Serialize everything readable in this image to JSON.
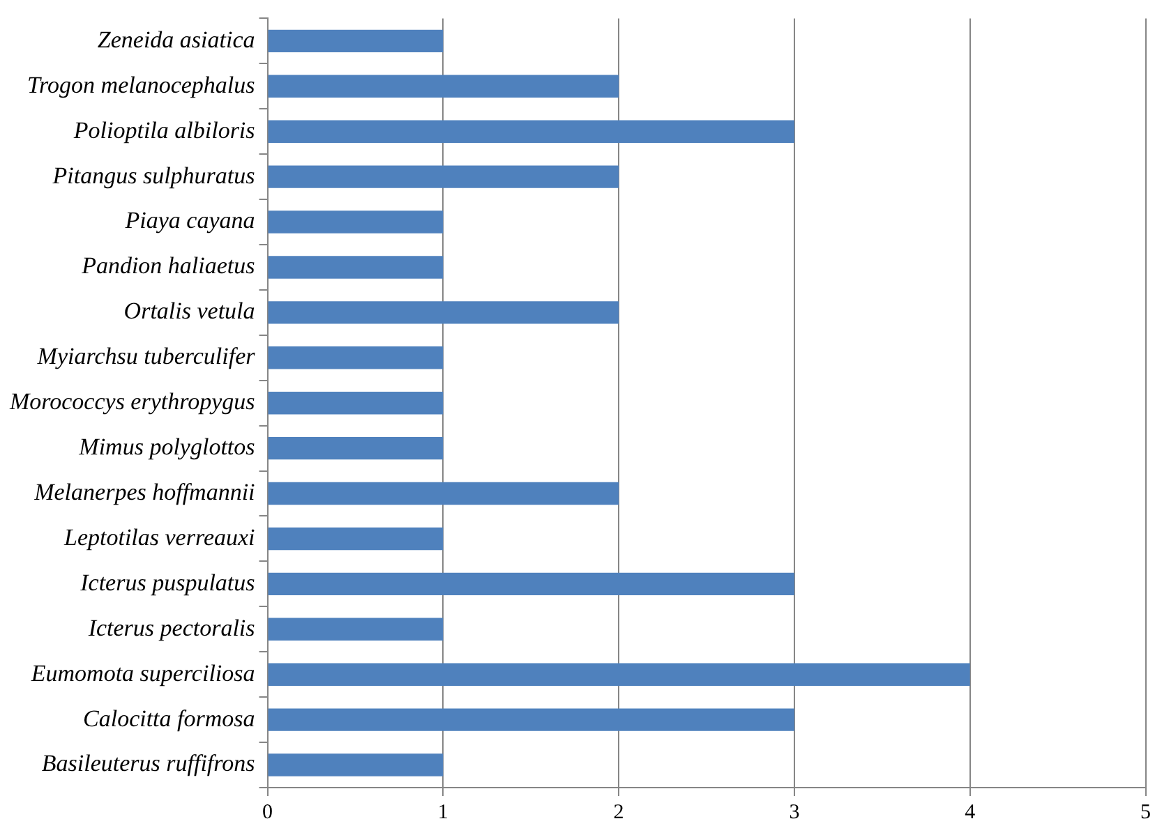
{
  "chart_data": {
    "type": "bar",
    "orientation": "horizontal",
    "categories": [
      "Zeneida asiatica",
      "Trogon melanocephalus",
      "Polioptila albiloris",
      "Pitangus sulphuratus",
      "Piaya cayana",
      "Pandion haliaetus",
      "Ortalis vetula",
      "Myiarchsu tuberculifer",
      "Morococcys erythropygus",
      "Mimus polyglottos",
      "Melanerpes hoffmannii",
      "Leptotilas verreauxi",
      "Icterus puspulatus",
      "Icterus pectoralis",
      "Eumomota superciliosa",
      "Calocitta formosa",
      "Basileuterus ruffifrons"
    ],
    "values": [
      1,
      2,
      3,
      2,
      1,
      1,
      2,
      1,
      1,
      1,
      2,
      1,
      3,
      1,
      4,
      3,
      1
    ],
    "color": "#4f81bd",
    "xlim": [
      0,
      5
    ],
    "xticks": [
      0,
      1,
      2,
      3,
      4,
      5
    ],
    "grid": "x",
    "legend": false
  }
}
